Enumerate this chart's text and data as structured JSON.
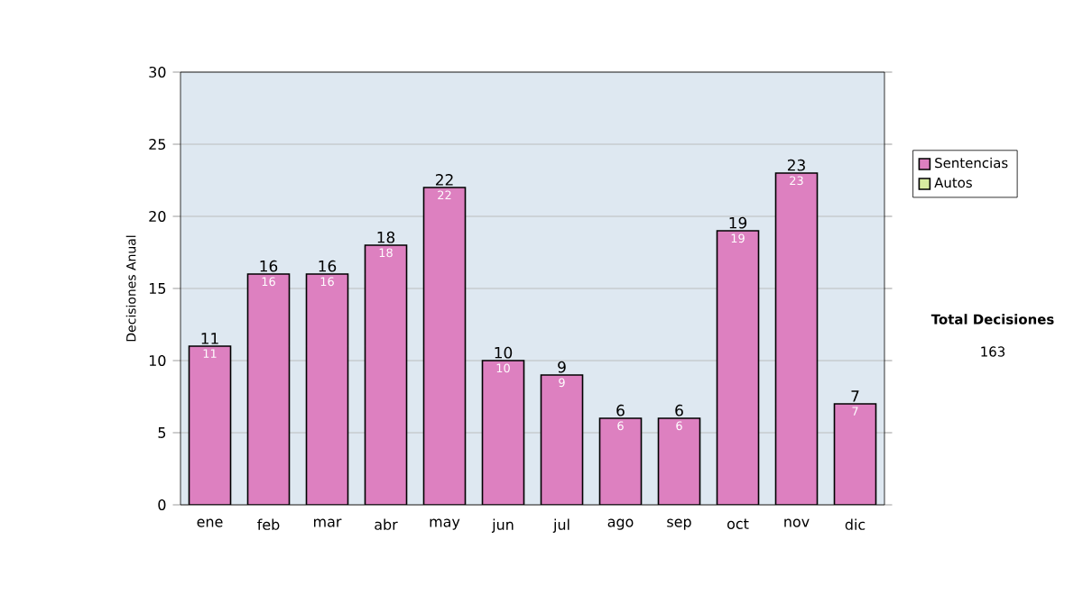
{
  "chart_data": {
    "type": "bar",
    "stacked": true,
    "ylabel": "Decisiones Anual",
    "categories": [
      "ene",
      "feb",
      "mar",
      "abr",
      "may",
      "jun",
      "jul",
      "ago",
      "sep",
      "oct",
      "nov",
      "dic"
    ],
    "series": [
      {
        "name": "Sentencias",
        "color": "#dd80c0",
        "values": [
          11,
          16,
          16,
          18,
          22,
          10,
          9,
          6,
          6,
          19,
          23,
          7
        ],
        "value_labels": [
          "11",
          "16",
          "16",
          "18",
          "22",
          "10",
          "9",
          "6",
          "6",
          "19",
          "23",
          "7"
        ]
      },
      {
        "name": "Autos",
        "color": "#d8eca0",
        "values": [
          0,
          0,
          0,
          0,
          0,
          0,
          0,
          0,
          0,
          0,
          0,
          0
        ]
      }
    ],
    "ylim": [
      0,
      30
    ],
    "yticks": [
      0,
      5,
      10,
      15,
      20,
      25,
      30
    ],
    "grid": "y",
    "legend": "right",
    "totals": [
      "11",
      "16",
      "16",
      "18",
      "22",
      "10",
      "9",
      "6",
      "6",
      "19",
      "23",
      "7"
    ],
    "annotations": [
      "Total Decisiones",
      "163"
    ]
  }
}
